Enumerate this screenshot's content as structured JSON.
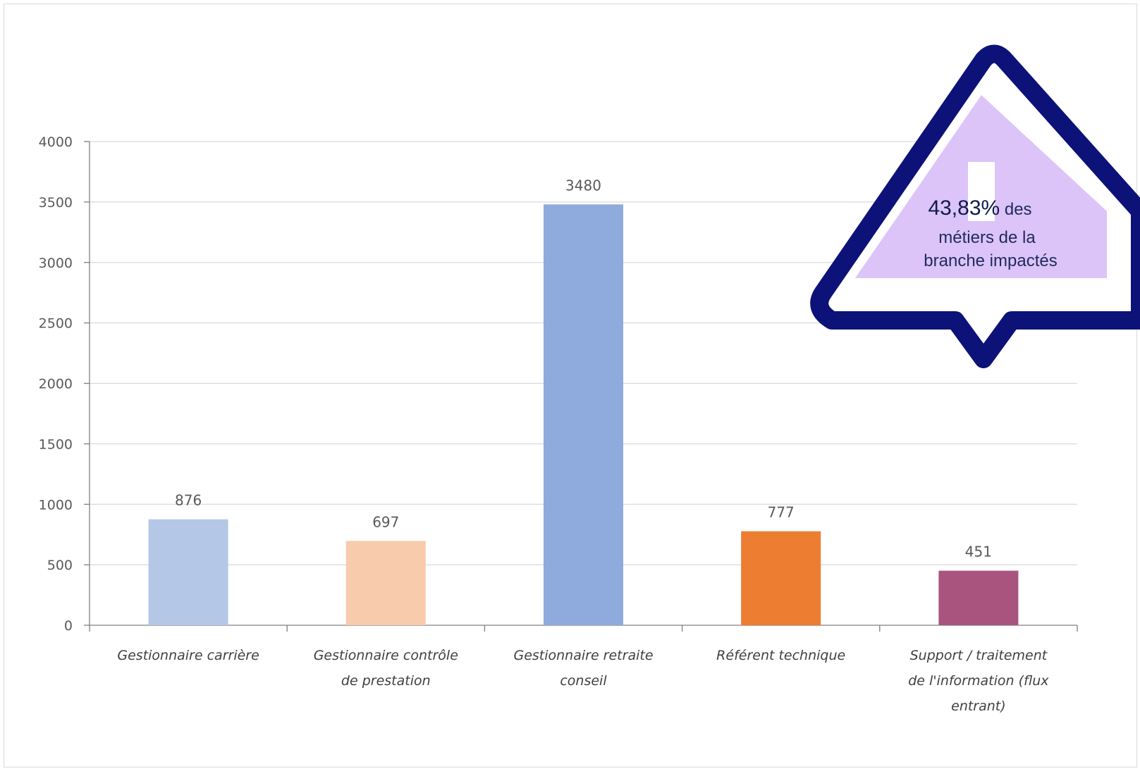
{
  "chart_data": {
    "type": "bar",
    "categories": [
      [
        "Gestionnaire carrière"
      ],
      [
        "Gestionnaire contrôle",
        "de prestation"
      ],
      [
        "Gestionnaire retraite",
        "conseil"
      ],
      [
        "Référent technique"
      ],
      [
        "Support / traitement",
        "de l'information (flux",
        "entrant)"
      ]
    ],
    "values": [
      876,
      697,
      3480,
      777,
      451
    ],
    "data_labels": [
      "876",
      "697",
      "3480",
      "777",
      "451"
    ],
    "bar_colors": [
      "#b4c7e7",
      "#f8cbad",
      "#8faadc",
      "#ed7d31",
      "#a9547f"
    ],
    "ylim": [
      0,
      4000
    ],
    "yticks": [
      0,
      500,
      1000,
      1500,
      2000,
      2500,
      3000,
      3500,
      4000
    ],
    "grid": true,
    "legend": "none"
  },
  "callout": {
    "value": "43,83%",
    "line1_rest": " des",
    "line2": "métiers de la",
    "line3": "branche impactés",
    "outline_color": "#0d1278",
    "fill_color": "#dcc4f8"
  }
}
